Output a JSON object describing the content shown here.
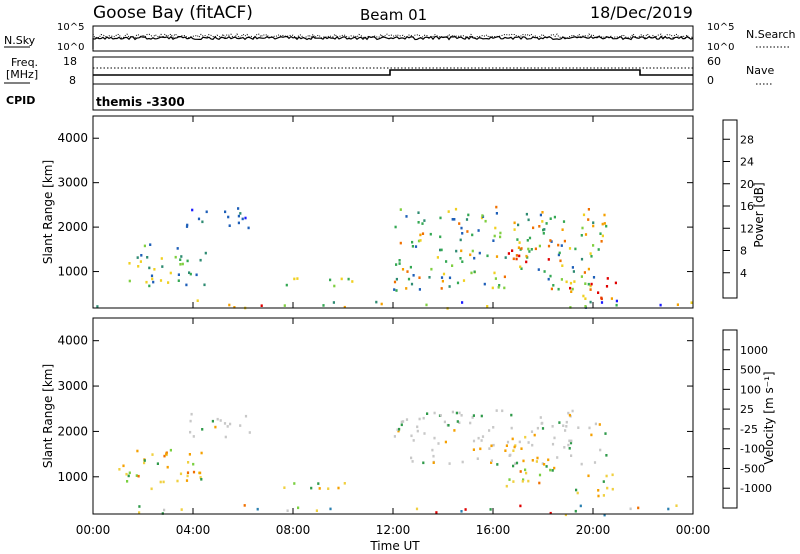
{
  "header": {
    "station": "Goose Bay (fitACF)",
    "beam": "Beam 01",
    "date": "18/Dec/2019"
  },
  "top_panels": {
    "nsky_label": "N.Sky",
    "nsky_ticks": [
      "10^5",
      "10^0"
    ],
    "nsearch_label": "N.Search",
    "freq_label_1": "Freq.",
    "freq_label_2": "[MHz]",
    "freq_ticks": [
      "18",
      "8"
    ],
    "nave_label": "Nave",
    "nave_ticks": [
      "60",
      "0"
    ],
    "cpid_label": "CPID",
    "cpid_value": "themis -3300"
  },
  "chart_data": [
    {
      "type": "heatmap",
      "panel": "power",
      "ylabel": "Slant Range [km]",
      "ylim": [
        180,
        4500
      ],
      "yticks": [
        1000,
        2000,
        3000,
        4000
      ],
      "colorbar_label": "Power [dB]",
      "colorbar_ticks": [
        "28",
        "24",
        "20",
        "16",
        "12",
        "8",
        "4"
      ],
      "colorbar_colors": [
        "#1a1aff",
        "#1e5fb8",
        "#2e8b72",
        "#34a853",
        "#7fcf40",
        "#f0d020",
        "#f5a000",
        "#f07000",
        "#e83a00",
        "#e00000"
      ],
      "scatter_regions": [
        {
          "t": [
            0.0,
            24.0
          ],
          "r": [
            180,
            400
          ],
          "level": "mixed"
        },
        {
          "t": [
            3.7,
            6.3
          ],
          "r": [
            1900,
            2450
          ],
          "level": "low"
        },
        {
          "t": [
            1.0,
            4.5
          ],
          "r": [
            700,
            1650
          ],
          "level": "low-mid"
        },
        {
          "t": [
            7.0,
            10.5
          ],
          "r": [
            700,
            900
          ],
          "level": "mid"
        },
        {
          "t": [
            12.0,
            20.5
          ],
          "r": [
            600,
            2500
          ],
          "level": "mid-high"
        },
        {
          "t": [
            16.5,
            18.5
          ],
          "r": [
            1100,
            1600
          ],
          "level": "high"
        },
        {
          "t": [
            19.0,
            21.0
          ],
          "r": [
            300,
            900
          ],
          "level": "high"
        }
      ]
    },
    {
      "type": "heatmap",
      "panel": "velocity",
      "ylabel": "Slant Range [km]",
      "ylim": [
        180,
        4500
      ],
      "yticks": [
        1000,
        2000,
        3000,
        4000
      ],
      "colorbar_label": "Velocity [m s⁻¹]",
      "colorbar_ticks": [
        "1000",
        "500",
        "100",
        "25",
        "-25",
        "-100",
        "-500",
        "-1000"
      ],
      "colorbar_colors": [
        "#1a3fcf",
        "#2a80b0",
        "#2f9a4a",
        "#7ad040",
        "#c8c8c8",
        "#c8c8c8",
        "#f0d040",
        "#f5a000",
        "#f07000",
        "#e83a00",
        "#e00000"
      ],
      "scatter_regions": [
        {
          "t": [
            0.0,
            24.0
          ],
          "r": [
            180,
            400
          ],
          "level": "mixed"
        },
        {
          "t": [
            3.7,
            6.3
          ],
          "r": [
            1900,
            2450
          ],
          "level": "grey"
        },
        {
          "t": [
            1.0,
            4.5
          ],
          "r": [
            700,
            1650
          ],
          "level": "orange"
        },
        {
          "t": [
            7.0,
            10.5
          ],
          "r": [
            700,
            900
          ],
          "level": "orange"
        },
        {
          "t": [
            12.0,
            20.5
          ],
          "r": [
            1300,
            2500
          ],
          "level": "grey"
        },
        {
          "t": [
            16.5,
            18.5
          ],
          "r": [
            800,
            2000
          ],
          "level": "orange"
        },
        {
          "t": [
            19.0,
            21.0
          ],
          "r": [
            600,
            1100
          ],
          "level": "orange"
        }
      ]
    }
  ],
  "time_axis": {
    "label": "Time UT",
    "ticks": [
      "00:00",
      "04:00",
      "08:00",
      "12:00",
      "16:00",
      "20:00",
      "00:00"
    ]
  }
}
